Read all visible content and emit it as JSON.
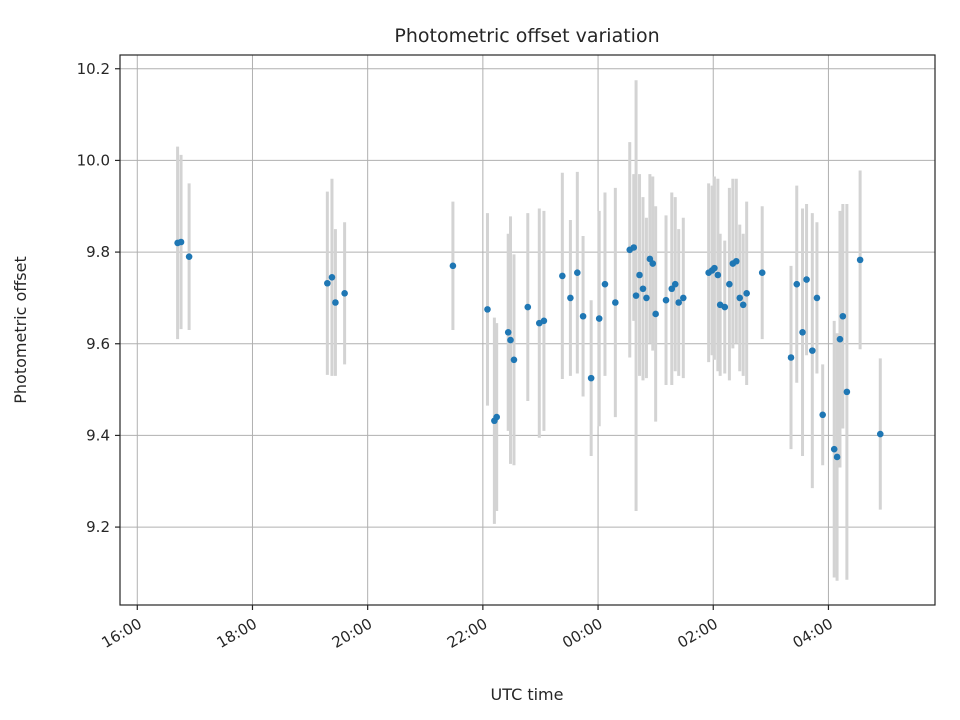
{
  "chart_data": {
    "type": "scatter",
    "title": "Photometric offset variation",
    "xlabel": "UTC time",
    "ylabel": "Photometric offset",
    "grid": true,
    "legend": "none",
    "point_color": "#1f77b4",
    "errorbar_color": "#d3d3d3",
    "grid_color": "#b0b0b0",
    "frame_color": "#262626",
    "xlim_hours_after_16_00": [
      -0.3,
      13.85
    ],
    "ylim": [
      9.03,
      10.23
    ],
    "x_ticks": [
      {
        "h": 0,
        "label": "16:00"
      },
      {
        "h": 2,
        "label": "18:00"
      },
      {
        "h": 4,
        "label": "20:00"
      },
      {
        "h": 6,
        "label": "22:00"
      },
      {
        "h": 8,
        "label": "00:00"
      },
      {
        "h": 10,
        "label": "02:00"
      },
      {
        "h": 12,
        "label": "04:00"
      }
    ],
    "y_ticks": [
      9.2,
      9.4,
      9.6,
      9.8,
      10.0,
      10.2
    ],
    "point_format": [
      "hours_after_16:00_UTC",
      "photometric_offset",
      "error_half_length"
    ],
    "points": [
      [
        0.7,
        9.82,
        0.21
      ],
      [
        0.76,
        9.822,
        0.19
      ],
      [
        0.9,
        9.79,
        0.16
      ],
      [
        3.3,
        9.732,
        0.2
      ],
      [
        3.38,
        9.745,
        0.215
      ],
      [
        3.44,
        9.69,
        0.16
      ],
      [
        3.6,
        9.71,
        0.155
      ],
      [
        5.48,
        9.77,
        0.14
      ],
      [
        6.08,
        9.675,
        0.21
      ],
      [
        6.2,
        9.432,
        0.225
      ],
      [
        6.24,
        9.44,
        0.205
      ],
      [
        6.44,
        9.625,
        0.215
      ],
      [
        6.48,
        9.608,
        0.27
      ],
      [
        6.54,
        9.565,
        0.23
      ],
      [
        6.78,
        9.68,
        0.205
      ],
      [
        6.98,
        9.645,
        0.25
      ],
      [
        7.06,
        9.65,
        0.24
      ],
      [
        7.38,
        9.748,
        0.225
      ],
      [
        7.52,
        9.7,
        0.17
      ],
      [
        7.64,
        9.755,
        0.22
      ],
      [
        7.74,
        9.66,
        0.175
      ],
      [
        7.88,
        9.525,
        0.17
      ],
      [
        8.02,
        9.655,
        0.235
      ],
      [
        8.12,
        9.73,
        0.2
      ],
      [
        8.3,
        9.69,
        0.25
      ],
      [
        8.55,
        9.805,
        0.235
      ],
      [
        8.62,
        9.81,
        0.16
      ],
      [
        8.66,
        9.705,
        0.47
      ],
      [
        8.72,
        9.75,
        0.22
      ],
      [
        8.78,
        9.72,
        0.2
      ],
      [
        8.84,
        9.7,
        0.175
      ],
      [
        8.9,
        9.785,
        0.185
      ],
      [
        8.95,
        9.775,
        0.19
      ],
      [
        9.0,
        9.665,
        0.235
      ],
      [
        9.18,
        9.695,
        0.185
      ],
      [
        9.28,
        9.72,
        0.21
      ],
      [
        9.34,
        9.73,
        0.19
      ],
      [
        9.4,
        9.69,
        0.16
      ],
      [
        9.48,
        9.7,
        0.175
      ],
      [
        9.92,
        9.755,
        0.195
      ],
      [
        9.98,
        9.76,
        0.185
      ],
      [
        10.02,
        9.765,
        0.2
      ],
      [
        10.08,
        9.75,
        0.21
      ],
      [
        10.12,
        9.685,
        0.155
      ],
      [
        10.2,
        9.68,
        0.145
      ],
      [
        10.28,
        9.73,
        0.21
      ],
      [
        10.34,
        9.775,
        0.185
      ],
      [
        10.4,
        9.78,
        0.18
      ],
      [
        10.46,
        9.7,
        0.16
      ],
      [
        10.52,
        9.685,
        0.155
      ],
      [
        10.58,
        9.71,
        0.2
      ],
      [
        10.85,
        9.755,
        0.145
      ],
      [
        11.35,
        9.57,
        0.2
      ],
      [
        11.45,
        9.73,
        0.215
      ],
      [
        11.55,
        9.625,
        0.27
      ],
      [
        11.62,
        9.74,
        0.165
      ],
      [
        11.72,
        9.585,
        0.3
      ],
      [
        11.8,
        9.7,
        0.165
      ],
      [
        11.9,
        9.445,
        0.11
      ],
      [
        12.1,
        9.37,
        0.28
      ],
      [
        12.15,
        9.353,
        0.27
      ],
      [
        12.2,
        9.61,
        0.28
      ],
      [
        12.25,
        9.66,
        0.245
      ],
      [
        12.32,
        9.495,
        0.41
      ],
      [
        12.55,
        9.783,
        0.195
      ],
      [
        12.9,
        9.403,
        0.165
      ]
    ]
  }
}
